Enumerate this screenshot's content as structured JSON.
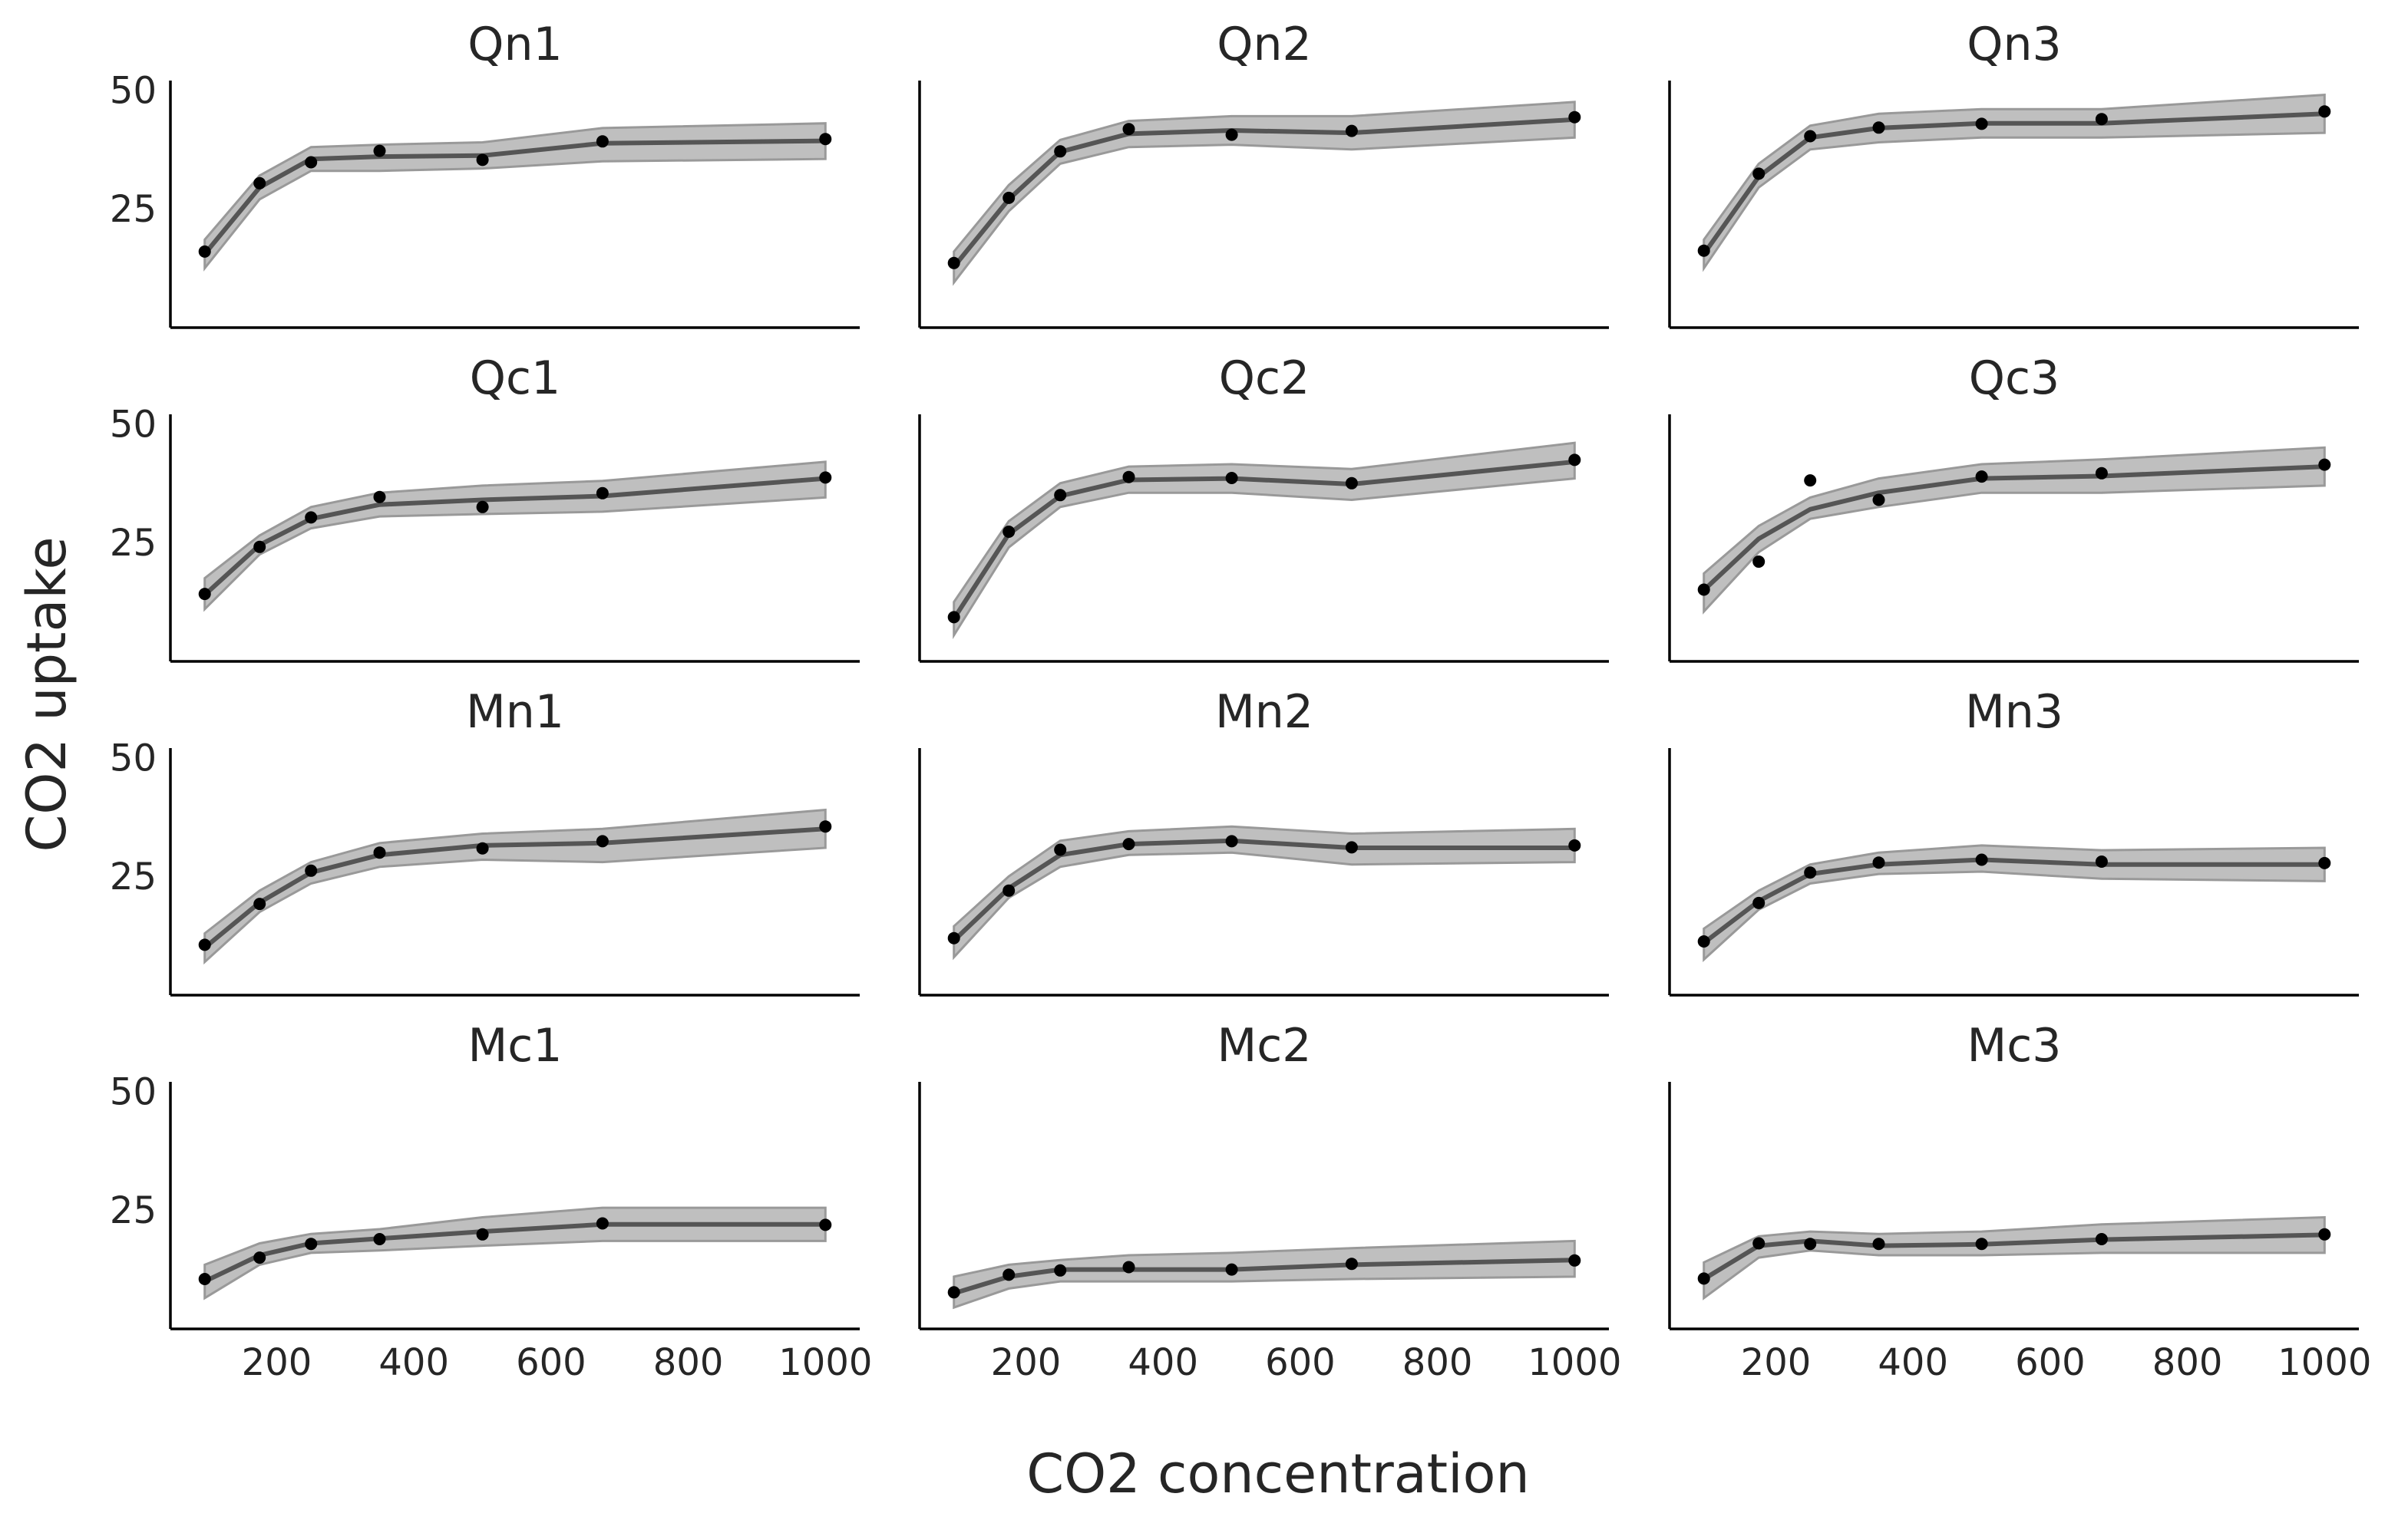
{
  "chart_data": {
    "type": "line",
    "xlabel": "CO2 concentration",
    "ylabel": "CO2 uptake",
    "x": [
      95,
      175,
      250,
      350,
      500,
      675,
      1000
    ],
    "xlim": [
      45,
      1050
    ],
    "ylim": [
      0,
      52
    ],
    "xticks": [
      200,
      400,
      600,
      800,
      1000
    ],
    "yticks": [
      25,
      50
    ],
    "grid": false,
    "colors": {
      "line": "#555555",
      "band": "#aaaaaa",
      "band_edge": "#999999",
      "points": "#000000"
    },
    "panels": [
      {
        "title": "Qn1",
        "observed": [
          16.0,
          30.4,
          34.8,
          37.2,
          35.3,
          39.2,
          39.7
        ],
        "mean": [
          15.5,
          29.5,
          35.5,
          36.0,
          36.2,
          38.8,
          39.3
        ],
        "band": [
          [
            12.5,
            18.5
          ],
          [
            27.0,
            32.0
          ],
          [
            33.0,
            38.0
          ],
          [
            33.0,
            38.5
          ],
          [
            33.5,
            39.0
          ],
          [
            35.0,
            42.0
          ],
          [
            35.5,
            43.0
          ]
        ]
      },
      {
        "title": "Qn2",
        "observed": [
          13.6,
          27.3,
          37.1,
          41.8,
          40.6,
          41.4,
          44.3
        ],
        "mean": [
          12.8,
          27.0,
          37.0,
          40.8,
          41.5,
          41.0,
          43.8
        ],
        "band": [
          [
            9.5,
            16.0
          ],
          [
            24.5,
            30.0
          ],
          [
            34.5,
            39.5
          ],
          [
            38.0,
            43.5
          ],
          [
            38.5,
            44.5
          ],
          [
            37.5,
            44.5
          ],
          [
            40.0,
            47.5
          ]
        ]
      },
      {
        "title": "Qn3",
        "observed": [
          16.2,
          32.4,
          40.3,
          42.1,
          42.9,
          43.9,
          45.5
        ],
        "mean": [
          15.5,
          31.8,
          40.0,
          42.0,
          43.0,
          43.0,
          45.0
        ],
        "band": [
          [
            12.5,
            18.5
          ],
          [
            29.5,
            34.5
          ],
          [
            37.5,
            42.5
          ],
          [
            39.0,
            45.0
          ],
          [
            40.0,
            46.0
          ],
          [
            40.0,
            46.0
          ],
          [
            41.0,
            49.0
          ]
        ]
      },
      {
        "title": "Qc1",
        "observed": [
          14.2,
          24.1,
          30.3,
          34.6,
          32.5,
          35.4,
          38.7
        ],
        "mean": [
          14.0,
          24.5,
          30.0,
          33.0,
          34.0,
          34.8,
          38.5
        ],
        "band": [
          [
            11.0,
            17.5
          ],
          [
            22.5,
            26.5
          ],
          [
            28.0,
            32.5
          ],
          [
            30.5,
            35.5
          ],
          [
            31.0,
            37.0
          ],
          [
            31.5,
            38.0
          ],
          [
            34.5,
            42.0
          ]
        ]
      },
      {
        "title": "Qc2",
        "observed": [
          9.3,
          27.3,
          35.0,
          38.8,
          38.6,
          37.5,
          42.4
        ],
        "mean": [
          9.0,
          26.8,
          34.8,
          38.2,
          38.5,
          37.3,
          42.0
        ],
        "band": [
          [
            5.5,
            12.5
          ],
          [
            24.0,
            29.5
          ],
          [
            32.5,
            37.5
          ],
          [
            35.5,
            41.0
          ],
          [
            35.5,
            41.5
          ],
          [
            34.0,
            40.5
          ],
          [
            38.5,
            46.0
          ]
        ]
      },
      {
        "title": "Qc3",
        "observed": [
          15.1,
          21.0,
          38.1,
          34.0,
          38.9,
          39.6,
          41.4
        ],
        "mean": [
          15.0,
          25.8,
          32.0,
          35.5,
          38.5,
          39.0,
          41.0
        ],
        "band": [
          [
            10.5,
            18.5
          ],
          [
            23.0,
            28.5
          ],
          [
            30.0,
            34.5
          ],
          [
            32.5,
            38.5
          ],
          [
            35.5,
            41.5
          ],
          [
            35.5,
            42.5
          ],
          [
            37.0,
            45.0
          ]
        ]
      },
      {
        "title": "Mn1",
        "observed": [
          10.6,
          19.2,
          26.2,
          30.0,
          30.9,
          32.4,
          35.5
        ],
        "mean": [
          10.0,
          19.5,
          25.8,
          29.5,
          31.5,
          32.0,
          35.0
        ],
        "band": [
          [
            7.0,
            13.0
          ],
          [
            17.5,
            22.0
          ],
          [
            23.5,
            28.0
          ],
          [
            27.0,
            32.0
          ],
          [
            28.5,
            34.0
          ],
          [
            28.0,
            35.0
          ],
          [
            31.0,
            39.0
          ]
        ]
      },
      {
        "title": "Mn2",
        "observed": [
          12.0,
          22.0,
          30.6,
          31.8,
          32.4,
          31.1,
          31.5
        ],
        "mean": [
          11.5,
          22.5,
          29.5,
          31.8,
          32.5,
          31.0,
          31.0
        ],
        "band": [
          [
            8.0,
            14.5
          ],
          [
            20.5,
            25.0
          ],
          [
            27.0,
            32.5
          ],
          [
            29.5,
            34.5
          ],
          [
            30.0,
            35.5
          ],
          [
            27.5,
            34.0
          ],
          [
            28.0,
            35.0
          ]
        ]
      },
      {
        "title": "Mn3",
        "observed": [
          11.3,
          19.4,
          25.8,
          27.9,
          28.5,
          28.1,
          27.8
        ],
        "mean": [
          11.0,
          19.8,
          25.5,
          27.5,
          28.5,
          27.5,
          27.5
        ],
        "band": [
          [
            7.5,
            14.0
          ],
          [
            18.0,
            22.0
          ],
          [
            23.5,
            27.5
          ],
          [
            25.5,
            30.0
          ],
          [
            26.0,
            31.5
          ],
          [
            24.5,
            30.5
          ],
          [
            24.0,
            31.0
          ]
        ]
      },
      {
        "title": "Mc1",
        "observed": [
          10.5,
          15.0,
          17.9,
          18.9,
          19.9,
          22.2,
          21.9
        ],
        "mean": [
          10.0,
          15.5,
          18.0,
          19.0,
          20.5,
          22.0,
          22.0
        ],
        "band": [
          [
            6.5,
            13.5
          ],
          [
            13.5,
            18.0
          ],
          [
            16.0,
            20.0
          ],
          [
            16.5,
            21.0
          ],
          [
            17.5,
            23.5
          ],
          [
            18.5,
            25.5
          ],
          [
            18.5,
            25.5
          ]
        ]
      },
      {
        "title": "Mc2",
        "observed": [
          7.7,
          11.4,
          12.3,
          13.0,
          12.5,
          13.7,
          14.4
        ],
        "mean": [
          7.5,
          11.0,
          12.5,
          12.5,
          12.5,
          13.5,
          14.5
        ],
        "band": [
          [
            4.5,
            11.0
          ],
          [
            8.5,
            13.5
          ],
          [
            10.0,
            14.5
          ],
          [
            10.0,
            15.5
          ],
          [
            10.0,
            16.0
          ],
          [
            10.5,
            17.0
          ],
          [
            11.0,
            18.5
          ]
        ]
      },
      {
        "title": "Mc3",
        "observed": [
          10.6,
          18.0,
          17.9,
          17.9,
          17.9,
          18.9,
          19.9
        ],
        "mean": [
          10.5,
          17.5,
          18.5,
          17.5,
          17.8,
          18.8,
          19.8
        ],
        "band": [
          [
            6.5,
            14.0
          ],
          [
            15.0,
            19.5
          ],
          [
            16.5,
            20.5
          ],
          [
            15.5,
            20.0
          ],
          [
            15.5,
            20.5
          ],
          [
            16.0,
            22.0
          ],
          [
            16.0,
            23.5
          ]
        ]
      }
    ]
  }
}
